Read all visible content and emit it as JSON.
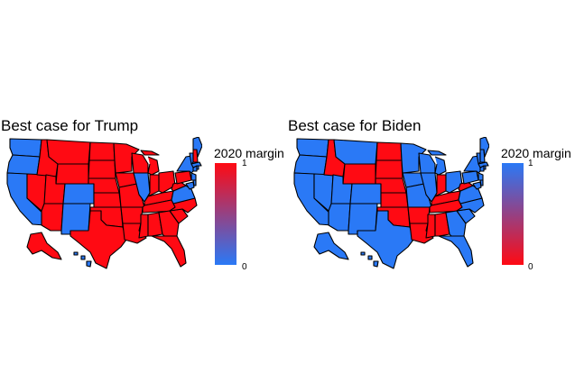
{
  "colors": {
    "gop": "#ff0a13",
    "dem": "#2a79f6",
    "border": "#000000",
    "background": "#ffffff"
  },
  "panels": [
    {
      "title": "Best case for Trump",
      "legend": {
        "title": "2020 margin",
        "top_tick": "1",
        "bottom_tick": "0",
        "top_color": "gop",
        "bottom_color": "dem"
      },
      "dem_states": [
        "WA",
        "OR",
        "CA",
        "CO",
        "NM",
        "IL",
        "VA",
        "MD",
        "DE",
        "NJ",
        "CT",
        "RI",
        "MA",
        "VT",
        "NY",
        "ME",
        "HI"
      ]
    },
    {
      "title": "Best case for Biden",
      "legend": {
        "title": "2020 margin",
        "top_tick": "1",
        "bottom_tick": "0",
        "top_color": "dem",
        "bottom_color": "gop"
      },
      "gop_states": [
        "ID",
        "WY",
        "ND",
        "SD",
        "NE",
        "KS",
        "OK",
        "AR",
        "LA",
        "MS",
        "AL",
        "TN",
        "KY",
        "WV",
        "IN"
      ]
    }
  ]
}
